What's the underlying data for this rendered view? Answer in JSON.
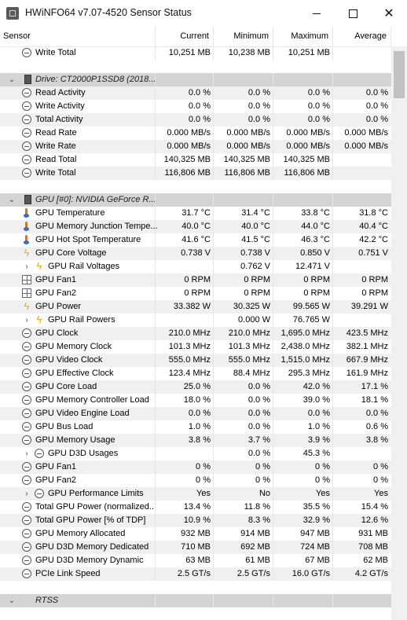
{
  "window": {
    "title": "HWiNFO64 v7.07-4520 Sensor Status"
  },
  "columns": [
    "Sensor",
    "Current",
    "Minimum",
    "Maximum",
    "Average"
  ],
  "rows": [
    {
      "type": "item",
      "alt": false,
      "indent": 0,
      "icon": "clock-icon",
      "label": "Write Total",
      "cur": "10,251 MB",
      "min": "10,238 MB",
      "max": "10,251 MB",
      "avg": ""
    },
    {
      "type": "blank"
    },
    {
      "type": "group",
      "expander": "chevron-down-icon",
      "icon": "drive-icon",
      "label": "Drive: CT2000P1SSD8 (2018..."
    },
    {
      "type": "item",
      "alt": true,
      "indent": 0,
      "icon": "clock-icon",
      "label": "Read Activity",
      "cur": "0.0 %",
      "min": "0.0 %",
      "max": "0.0 %",
      "avg": "0.0 %"
    },
    {
      "type": "item",
      "alt": false,
      "indent": 0,
      "icon": "clock-icon",
      "label": "Write Activity",
      "cur": "0.0 %",
      "min": "0.0 %",
      "max": "0.0 %",
      "avg": "0.0 %"
    },
    {
      "type": "item",
      "alt": true,
      "indent": 0,
      "icon": "clock-icon",
      "label": "Total Activity",
      "cur": "0.0 %",
      "min": "0.0 %",
      "max": "0.0 %",
      "avg": "0.0 %"
    },
    {
      "type": "item",
      "alt": false,
      "indent": 0,
      "icon": "clock-icon",
      "label": "Read Rate",
      "cur": "0.000 MB/s",
      "min": "0.000 MB/s",
      "max": "0.000 MB/s",
      "avg": "0.000 MB/s"
    },
    {
      "type": "item",
      "alt": true,
      "indent": 0,
      "icon": "clock-icon",
      "label": "Write Rate",
      "cur": "0.000 MB/s",
      "min": "0.000 MB/s",
      "max": "0.000 MB/s",
      "avg": "0.000 MB/s"
    },
    {
      "type": "item",
      "alt": false,
      "indent": 0,
      "icon": "clock-icon",
      "label": "Read Total",
      "cur": "140,325 MB",
      "min": "140,325 MB",
      "max": "140,325 MB",
      "avg": ""
    },
    {
      "type": "item",
      "alt": true,
      "indent": 0,
      "icon": "clock-icon",
      "label": "Write Total",
      "cur": "116,806 MB",
      "min": "116,806 MB",
      "max": "116,806 MB",
      "avg": ""
    },
    {
      "type": "blank"
    },
    {
      "type": "group",
      "expander": "chevron-down-icon",
      "icon": "gpu-icon",
      "label": "GPU [#0]: NVIDIA GeForce R..."
    },
    {
      "type": "item",
      "alt": false,
      "indent": 0,
      "icon": "thermometer-icon",
      "label": "GPU Temperature",
      "cur": "31.7 °C",
      "min": "31.4 °C",
      "max": "33.8 °C",
      "avg": "31.8 °C"
    },
    {
      "type": "item",
      "alt": true,
      "indent": 0,
      "icon": "thermometer-icon",
      "label": "GPU Memory Junction Tempe...",
      "cur": "40.0 °C",
      "min": "40.0 °C",
      "max": "44.0 °C",
      "avg": "40.4 °C"
    },
    {
      "type": "item",
      "alt": false,
      "indent": 0,
      "icon": "thermometer-icon",
      "label": "GPU Hot Spot Temperature",
      "cur": "41.6 °C",
      "min": "41.5 °C",
      "max": "46.3 °C",
      "avg": "42.2 °C"
    },
    {
      "type": "item",
      "alt": true,
      "indent": 0,
      "icon": "bolt-icon",
      "label": "GPU Core Voltage",
      "cur": "0.738 V",
      "min": "0.738 V",
      "max": "0.850 V",
      "avg": "0.751 V"
    },
    {
      "type": "item",
      "alt": false,
      "indent": 1,
      "expander": "chevron-right-icon",
      "icon": "bolt-icon",
      "label": "GPU Rail Voltages",
      "cur": "",
      "min": "0.762 V",
      "max": "12.471 V",
      "avg": ""
    },
    {
      "type": "item",
      "alt": true,
      "indent": 0,
      "icon": "fan-icon",
      "label": "GPU Fan1",
      "cur": "0 RPM",
      "min": "0 RPM",
      "max": "0 RPM",
      "avg": "0 RPM"
    },
    {
      "type": "item",
      "alt": false,
      "indent": 0,
      "icon": "fan-icon",
      "label": "GPU Fan2",
      "cur": "0 RPM",
      "min": "0 RPM",
      "max": "0 RPM",
      "avg": "0 RPM"
    },
    {
      "type": "item",
      "alt": true,
      "indent": 0,
      "icon": "bolt-icon",
      "label": "GPU Power",
      "cur": "33.382 W",
      "min": "30.325 W",
      "max": "99.565 W",
      "avg": "39.291 W"
    },
    {
      "type": "item",
      "alt": false,
      "indent": 1,
      "expander": "chevron-right-icon",
      "icon": "bolt-icon",
      "label": "GPU Rail Powers",
      "cur": "",
      "min": "0.000 W",
      "max": "76.765 W",
      "avg": ""
    },
    {
      "type": "item",
      "alt": true,
      "indent": 0,
      "icon": "clock-icon",
      "label": "GPU Clock",
      "cur": "210.0 MHz",
      "min": "210.0 MHz",
      "max": "1,695.0 MHz",
      "avg": "423.5 MHz"
    },
    {
      "type": "item",
      "alt": false,
      "indent": 0,
      "icon": "clock-icon",
      "label": "GPU Memory Clock",
      "cur": "101.3 MHz",
      "min": "101.3 MHz",
      "max": "2,438.0 MHz",
      "avg": "382.1 MHz"
    },
    {
      "type": "item",
      "alt": true,
      "indent": 0,
      "icon": "clock-icon",
      "label": "GPU Video Clock",
      "cur": "555.0 MHz",
      "min": "555.0 MHz",
      "max": "1,515.0 MHz",
      "avg": "667.9 MHz"
    },
    {
      "type": "item",
      "alt": false,
      "indent": 0,
      "icon": "clock-icon",
      "label": "GPU Effective Clock",
      "cur": "123.4 MHz",
      "min": "88.4 MHz",
      "max": "295.3 MHz",
      "avg": "161.9 MHz"
    },
    {
      "type": "item",
      "alt": true,
      "indent": 0,
      "icon": "clock-icon",
      "label": "GPU Core Load",
      "cur": "25.0 %",
      "min": "0.0 %",
      "max": "42.0 %",
      "avg": "17.1 %"
    },
    {
      "type": "item",
      "alt": false,
      "indent": 0,
      "icon": "clock-icon",
      "label": "GPU Memory Controller Load",
      "cur": "18.0 %",
      "min": "0.0 %",
      "max": "39.0 %",
      "avg": "18.1 %"
    },
    {
      "type": "item",
      "alt": true,
      "indent": 0,
      "icon": "clock-icon",
      "label": "GPU Video Engine Load",
      "cur": "0.0 %",
      "min": "0.0 %",
      "max": "0.0 %",
      "avg": "0.0 %"
    },
    {
      "type": "item",
      "alt": false,
      "indent": 0,
      "icon": "clock-icon",
      "label": "GPU Bus Load",
      "cur": "1.0 %",
      "min": "0.0 %",
      "max": "1.0 %",
      "avg": "0.6 %"
    },
    {
      "type": "item",
      "alt": true,
      "indent": 0,
      "icon": "clock-icon",
      "label": "GPU Memory Usage",
      "cur": "3.8 %",
      "min": "3.7 %",
      "max": "3.9 %",
      "avg": "3.8 %"
    },
    {
      "type": "item",
      "alt": false,
      "indent": 1,
      "expander": "chevron-right-icon",
      "icon": "clock-icon",
      "label": "GPU D3D Usages",
      "cur": "",
      "min": "0.0 %",
      "max": "45.3 %",
      "avg": ""
    },
    {
      "type": "item",
      "alt": true,
      "indent": 0,
      "icon": "clock-icon",
      "label": "GPU Fan1",
      "cur": "0 %",
      "min": "0 %",
      "max": "0 %",
      "avg": "0 %"
    },
    {
      "type": "item",
      "alt": false,
      "indent": 0,
      "icon": "clock-icon",
      "label": "GPU Fan2",
      "cur": "0 %",
      "min": "0 %",
      "max": "0 %",
      "avg": "0 %"
    },
    {
      "type": "item",
      "alt": true,
      "indent": 1,
      "expander": "chevron-right-icon",
      "icon": "clock-icon",
      "label": "GPU Performance Limits",
      "cur": "Yes",
      "min": "No",
      "max": "Yes",
      "avg": "Yes"
    },
    {
      "type": "item",
      "alt": false,
      "indent": 0,
      "icon": "clock-icon",
      "label": "Total GPU Power (normalized...",
      "cur": "13.4 %",
      "min": "11.8 %",
      "max": "35.5 %",
      "avg": "15.4 %"
    },
    {
      "type": "item",
      "alt": true,
      "indent": 0,
      "icon": "clock-icon",
      "label": "Total GPU Power [% of TDP]",
      "cur": "10.9 %",
      "min": "8.3 %",
      "max": "32.9 %",
      "avg": "12.6 %"
    },
    {
      "type": "item",
      "alt": false,
      "indent": 0,
      "icon": "clock-icon",
      "label": "GPU Memory Allocated",
      "cur": "932 MB",
      "min": "914 MB",
      "max": "947 MB",
      "avg": "931 MB"
    },
    {
      "type": "item",
      "alt": true,
      "indent": 0,
      "icon": "clock-icon",
      "label": "GPU D3D Memory Dedicated",
      "cur": "710 MB",
      "min": "692 MB",
      "max": "724 MB",
      "avg": "708 MB"
    },
    {
      "type": "item",
      "alt": false,
      "indent": 0,
      "icon": "clock-icon",
      "label": "GPU D3D Memory Dynamic",
      "cur": "63 MB",
      "min": "61 MB",
      "max": "67 MB",
      "avg": "62 MB"
    },
    {
      "type": "item",
      "alt": true,
      "indent": 0,
      "icon": "clock-icon",
      "label": "PCIe Link Speed",
      "cur": "2.5 GT/s",
      "min": "2.5 GT/s",
      "max": "16.0 GT/s",
      "avg": "4.2 GT/s"
    },
    {
      "type": "blank"
    },
    {
      "type": "group",
      "expander": "chevron-down-icon",
      "icon": "",
      "label": "RTSS"
    }
  ]
}
